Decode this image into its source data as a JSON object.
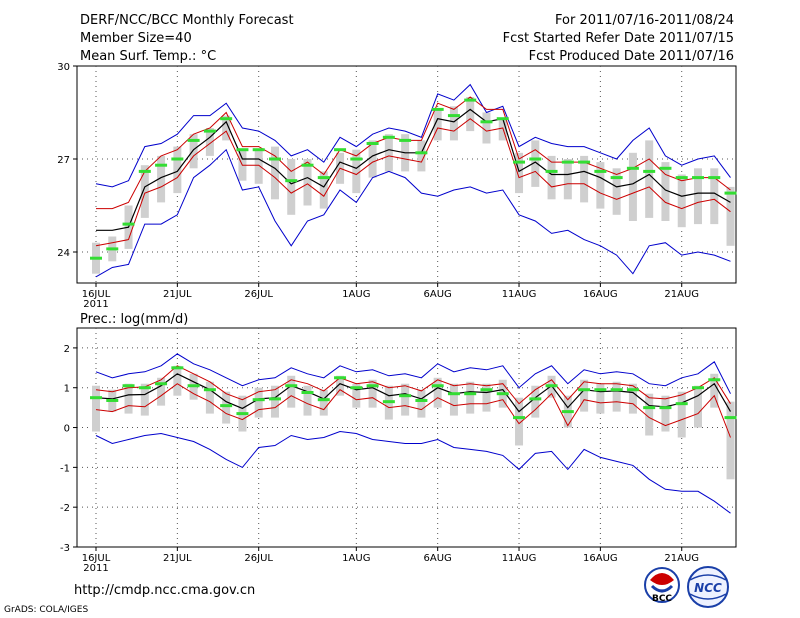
{
  "header": {
    "title": "DERF/NCC/BCC Monthly Forecast",
    "member_size": "Member Size=40",
    "variable": "Mean Surf. Temp.: °C",
    "forecast_range": "For 2011/07/16-2011/08/24",
    "started_refer": "Fcst Started Refer Date 2011/07/15",
    "produced": "Fcst Produced Date 2011/07/16"
  },
  "footer": {
    "url": "http://cmdp.ncc.cma.gov.cn",
    "grads_credit": "GrADS: COLA/IGES",
    "logo_bcc_label": "BCC",
    "logo_ncc_label": "NCC"
  },
  "x_labels": [
    {
      "day": 1,
      "label": "16JUL",
      "sub": "2011"
    },
    {
      "day": 6,
      "label": "21JUL"
    },
    {
      "day": 11,
      "label": "26JUL"
    },
    {
      "day": 17,
      "label": "1AUG"
    },
    {
      "day": 22,
      "label": "6AUG"
    },
    {
      "day": 27,
      "label": "11AUG"
    },
    {
      "day": 32,
      "label": "16AUG"
    },
    {
      "day": 37,
      "label": "21AUG"
    }
  ],
  "colors": {
    "mean": "#000000",
    "spread": "#cc0000",
    "envelope": "#0000cc",
    "box": "#cfcfcf",
    "median": "#33dd33"
  },
  "chart_data": [
    {
      "type": "line",
      "title": "Mean Surf. Temp.: °C",
      "ylabel": "",
      "ylim": [
        23,
        30
      ],
      "yticks": [
        24,
        27,
        30
      ],
      "x_days": 40,
      "series": [
        {
          "name": "ensemble-mean",
          "values": [
            24.7,
            24.7,
            24.8,
            26.1,
            26.4,
            26.6,
            27.3,
            27.7,
            28.2,
            27.0,
            27.0,
            26.7,
            26.2,
            26.4,
            26.1,
            26.9,
            26.7,
            27.1,
            27.3,
            27.2,
            27.2,
            28.3,
            28.2,
            28.6,
            28.2,
            28.3,
            26.6,
            26.9,
            26.5,
            26.5,
            26.6,
            26.4,
            26.1,
            26.2,
            26.5,
            26.0,
            25.8,
            25.9,
            25.9,
            25.6
          ]
        },
        {
          "name": "mean-plus-spread",
          "values": [
            25.4,
            25.4,
            25.6,
            26.6,
            27.1,
            27.3,
            27.8,
            28.0,
            28.5,
            27.4,
            27.4,
            27.1,
            26.6,
            26.9,
            26.5,
            27.3,
            27.1,
            27.5,
            27.7,
            27.6,
            27.6,
            28.8,
            28.6,
            29.0,
            28.6,
            28.6,
            27.0,
            27.3,
            26.9,
            26.9,
            26.9,
            26.7,
            26.5,
            26.7,
            27.0,
            26.5,
            26.3,
            26.4,
            26.4,
            26.0
          ]
        },
        {
          "name": "mean-minus-spread",
          "values": [
            24.2,
            24.3,
            24.4,
            25.9,
            26.1,
            26.4,
            27.1,
            27.5,
            27.9,
            26.8,
            26.8,
            26.4,
            25.9,
            26.2,
            25.8,
            26.7,
            26.5,
            26.9,
            27.1,
            27.0,
            26.9,
            28.0,
            27.9,
            28.3,
            27.9,
            28.0,
            26.4,
            26.6,
            26.1,
            26.2,
            26.2,
            25.9,
            25.7,
            25.9,
            26.1,
            25.6,
            25.4,
            25.6,
            25.7,
            25.3
          ]
        },
        {
          "name": "ensemble-max",
          "values": [
            26.2,
            26.1,
            26.3,
            27.4,
            27.5,
            27.8,
            28.4,
            28.4,
            28.8,
            28.0,
            27.9,
            27.6,
            27.1,
            27.3,
            26.9,
            27.7,
            27.4,
            27.8,
            28.0,
            27.9,
            27.7,
            29.1,
            28.9,
            29.4,
            28.5,
            28.7,
            27.4,
            27.7,
            27.5,
            27.4,
            27.4,
            27.2,
            27.0,
            27.6,
            28.0,
            27.1,
            26.8,
            27.0,
            27.1,
            26.4
          ]
        },
        {
          "name": "ensemble-min",
          "values": [
            23.2,
            23.5,
            23.6,
            24.9,
            24.9,
            25.2,
            26.4,
            26.8,
            27.3,
            26.0,
            26.1,
            25.0,
            24.2,
            25.0,
            25.2,
            26.0,
            25.6,
            26.4,
            26.6,
            26.4,
            25.9,
            25.8,
            26.0,
            26.1,
            25.9,
            26.0,
            25.2,
            25.0,
            24.6,
            24.7,
            24.4,
            24.2,
            23.9,
            23.3,
            24.2,
            24.3,
            23.9,
            24.0,
            23.9,
            23.7
          ]
        }
      ],
      "boxes": {
        "low": [
          23.3,
          23.7,
          24.1,
          25.1,
          25.6,
          25.9,
          26.7,
          27.1,
          27.6,
          26.3,
          26.2,
          25.7,
          25.2,
          25.5,
          25.4,
          26.2,
          25.9,
          26.4,
          26.6,
          26.6,
          26.6,
          27.6,
          27.6,
          27.9,
          27.5,
          27.6,
          25.9,
          26.1,
          25.7,
          25.7,
          25.6,
          25.4,
          25.2,
          25.0,
          25.1,
          25.0,
          24.8,
          24.9,
          24.9,
          24.2
        ],
        "high": [
          24.3,
          24.5,
          25.5,
          26.8,
          27.1,
          27.4,
          27.8,
          28.0,
          28.4,
          27.3,
          27.3,
          27.4,
          27.0,
          27.0,
          26.6,
          27.2,
          27.3,
          27.6,
          27.8,
          27.8,
          27.6,
          28.6,
          28.7,
          29.0,
          28.5,
          28.3,
          27.2,
          27.6,
          27.1,
          27.0,
          27.1,
          26.9,
          26.7,
          27.2,
          27.6,
          26.9,
          26.5,
          26.7,
          26.7,
          26.1
        ],
        "median": [
          23.8,
          24.1,
          24.9,
          26.6,
          26.8,
          27.0,
          27.6,
          27.9,
          28.3,
          27.3,
          27.3,
          27.0,
          26.3,
          26.8,
          26.4,
          27.3,
          27.0,
          27.5,
          27.7,
          27.6,
          27.2,
          28.6,
          28.4,
          28.9,
          28.2,
          28.3,
          26.9,
          27.0,
          26.6,
          26.9,
          26.9,
          26.6,
          26.4,
          26.7,
          26.6,
          26.7,
          26.4,
          26.4,
          26.4,
          25.9
        ]
      }
    },
    {
      "type": "line",
      "title": "Prec.: log(mm/d)",
      "ylabel": "",
      "ylim": [
        -3,
        2.5
      ],
      "yticks": [
        -3,
        -2,
        -1,
        0,
        1,
        2
      ],
      "x_days": 40,
      "series": [
        {
          "name": "ensemble-mean",
          "values": [
            0.75,
            0.72,
            0.82,
            0.83,
            1.05,
            1.35,
            1.15,
            0.95,
            0.65,
            0.48,
            0.72,
            0.75,
            1.05,
            0.9,
            0.72,
            1.1,
            0.95,
            1.0,
            0.8,
            0.85,
            0.72,
            1.0,
            0.85,
            0.9,
            0.88,
            0.95,
            0.4,
            0.75,
            1.05,
            0.5,
            0.95,
            0.9,
            0.92,
            0.88,
            0.55,
            0.52,
            0.62,
            0.8,
            1.1,
            0.4
          ]
        },
        {
          "name": "mean-plus-spread",
          "values": [
            0.95,
            0.9,
            1.0,
            1.02,
            1.2,
            1.55,
            1.35,
            1.15,
            0.85,
            0.7,
            0.9,
            0.95,
            1.2,
            1.1,
            0.92,
            1.25,
            1.1,
            1.15,
            1.0,
            1.05,
            0.92,
            1.2,
            1.05,
            1.1,
            1.05,
            1.1,
            0.6,
            0.95,
            1.2,
            0.7,
            1.15,
            1.1,
            1.1,
            1.05,
            0.75,
            0.72,
            0.82,
            1.0,
            1.25,
            0.6
          ]
        },
        {
          "name": "mean-minus-spread",
          "values": [
            0.45,
            0.4,
            0.55,
            0.52,
            0.8,
            1.1,
            0.85,
            0.65,
            0.35,
            0.2,
            0.45,
            0.5,
            0.8,
            0.6,
            0.45,
            0.95,
            0.7,
            0.75,
            0.5,
            0.55,
            0.45,
            0.75,
            0.55,
            0.6,
            0.6,
            0.7,
            0.1,
            0.45,
            0.85,
            0.05,
            0.7,
            0.62,
            0.65,
            0.6,
            0.25,
            0.05,
            0.2,
            0.35,
            0.8,
            -0.25
          ]
        },
        {
          "name": "ensemble-max",
          "values": [
            1.4,
            1.25,
            1.35,
            1.4,
            1.55,
            1.85,
            1.6,
            1.45,
            1.25,
            1.05,
            1.2,
            1.25,
            1.5,
            1.35,
            1.25,
            1.55,
            1.4,
            1.45,
            1.3,
            1.35,
            1.25,
            1.6,
            1.4,
            1.5,
            1.45,
            1.55,
            1.0,
            1.35,
            1.55,
            1.1,
            1.45,
            1.35,
            1.4,
            1.35,
            1.1,
            1.05,
            1.25,
            1.35,
            1.65,
            0.85
          ]
        },
        {
          "name": "ensemble-min",
          "values": [
            -0.2,
            -0.4,
            -0.3,
            -0.2,
            -0.15,
            -0.25,
            -0.35,
            -0.55,
            -0.8,
            -1.0,
            -0.5,
            -0.45,
            -0.2,
            -0.3,
            -0.25,
            -0.1,
            -0.15,
            -0.3,
            -0.35,
            -0.4,
            -0.4,
            -0.3,
            -0.5,
            -0.55,
            -0.6,
            -0.7,
            -1.05,
            -0.65,
            -0.6,
            -1.05,
            -0.55,
            -0.75,
            -0.85,
            -0.95,
            -1.3,
            -1.55,
            -1.6,
            -1.6,
            -1.85,
            -2.15
          ]
        }
      ],
      "boxes": {
        "low": [
          -0.1,
          0.4,
          0.35,
          0.3,
          0.55,
          0.8,
          0.7,
          0.35,
          0.1,
          -0.1,
          0.25,
          0.25,
          0.5,
          0.3,
          0.3,
          0.8,
          0.5,
          0.5,
          0.2,
          0.3,
          0.25,
          0.5,
          0.3,
          0.35,
          0.4,
          0.5,
          -0.45,
          0.25,
          0.75,
          0.0,
          0.4,
          0.35,
          0.4,
          0.35,
          -0.2,
          -0.1,
          -0.25,
          0.0,
          0.5,
          -1.3
        ],
        "high": [
          1.05,
          0.95,
          1.1,
          1.1,
          1.25,
          1.55,
          1.35,
          1.15,
          0.9,
          0.8,
          1.0,
          1.05,
          1.3,
          1.05,
          0.95,
          1.3,
          1.1,
          1.2,
          1.05,
          1.1,
          0.95,
          1.25,
          1.1,
          1.15,
          1.1,
          1.2,
          0.75,
          1.05,
          1.3,
          0.8,
          1.2,
          1.1,
          1.15,
          1.1,
          0.85,
          0.8,
          0.9,
          1.05,
          1.35,
          0.65
        ],
        "median": [
          0.75,
          0.68,
          1.05,
          1.0,
          1.1,
          1.5,
          1.05,
          0.95,
          0.55,
          0.35,
          0.7,
          0.72,
          1.05,
          0.88,
          0.7,
          1.25,
          1.0,
          1.05,
          0.65,
          0.8,
          0.68,
          1.05,
          0.85,
          0.85,
          0.95,
          0.85,
          0.25,
          0.72,
          1.05,
          0.4,
          0.95,
          0.95,
          0.95,
          0.95,
          0.5,
          0.5,
          0.6,
          1.0,
          1.2,
          0.25
        ]
      }
    }
  ]
}
